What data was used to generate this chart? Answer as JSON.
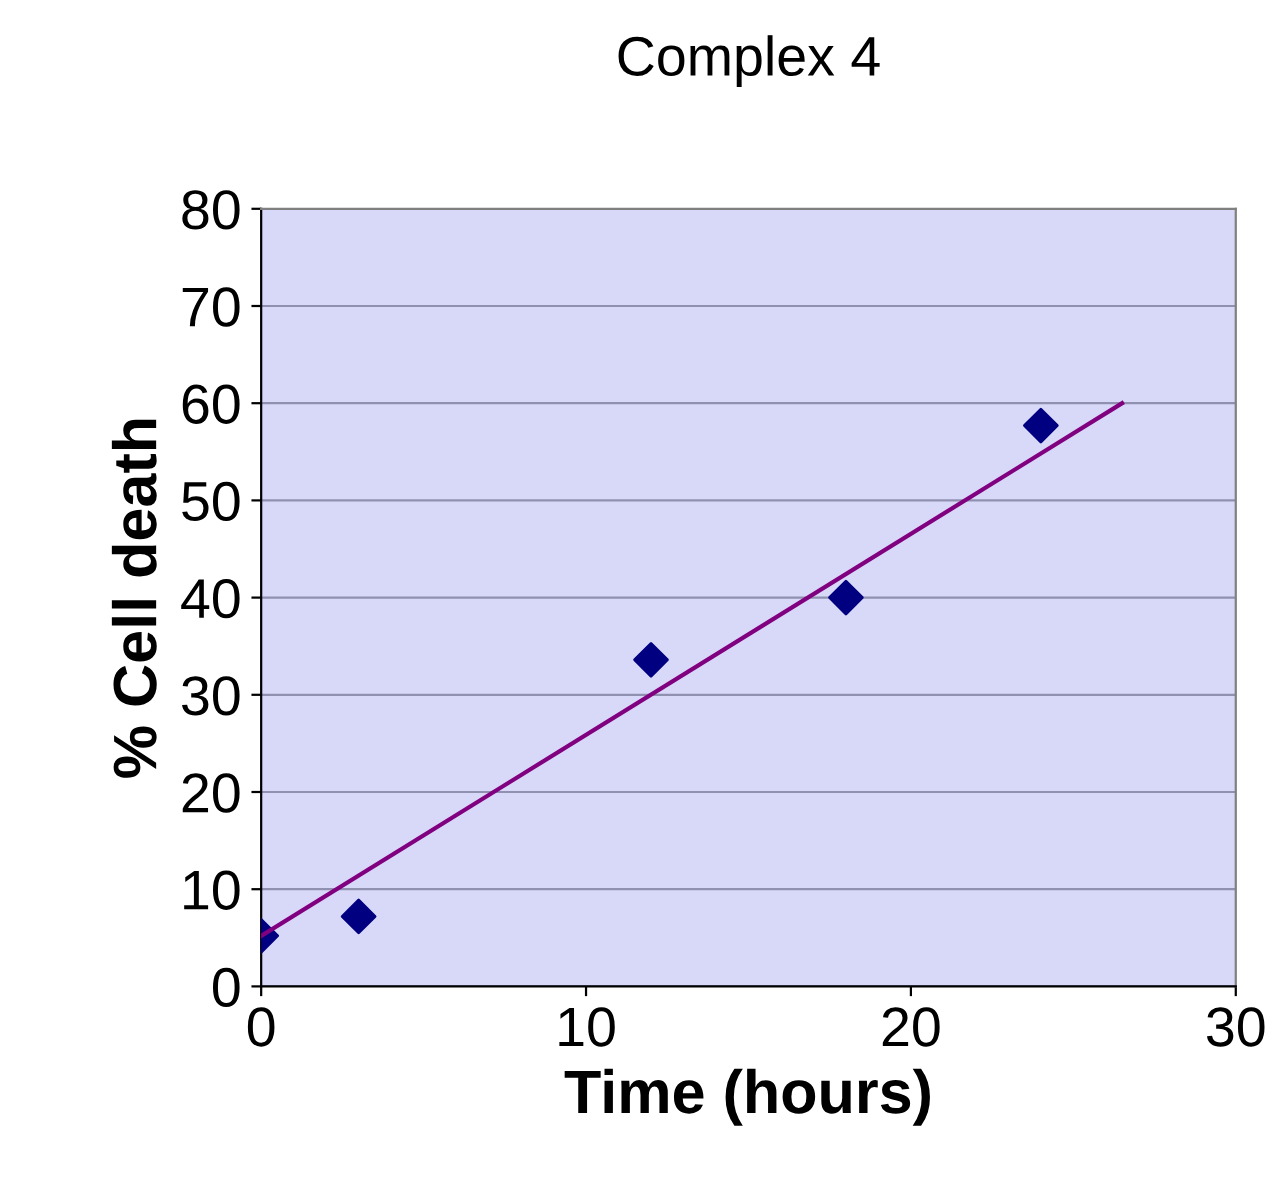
{
  "chart_data": {
    "type": "scatter",
    "title": "Complex 4",
    "xlabel": "Time (hours)",
    "ylabel": "% Cell death",
    "series": [
      {
        "color": "#000080",
        "x": [
          0,
          3,
          12,
          18,
          24
        ],
        "values": [
          5.2,
          7.2,
          33.6,
          40,
          57.7
        ],
        "marker": "diamond"
      },
      {
        "type": "line",
        "color": "#800080",
        "x": [
          0,
          26.5
        ],
        "values": [
          5.2,
          60
        ],
        "marker": "none",
        "line_style": "solid"
      }
    ],
    "xlim": [
      0,
      30
    ],
    "xticks": [
      0,
      10,
      20,
      30
    ],
    "ylim": [
      0,
      80
    ],
    "yticks": [
      0,
      10,
      20,
      30,
      40,
      50,
      60,
      70,
      80
    ],
    "grid": "y",
    "legend": false
  }
}
